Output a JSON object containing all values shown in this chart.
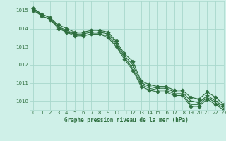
{
  "title": "Graphe pression niveau de la mer (hPa)",
  "background_color": "#cff0e8",
  "grid_color": "#a8d8cc",
  "line_color": "#2d6e3e",
  "marker_color": "#2d6e3e",
  "xlim": [
    -0.5,
    23
  ],
  "ylim": [
    1009.5,
    1015.5
  ],
  "yticks": [
    1010,
    1011,
    1012,
    1013,
    1014,
    1015
  ],
  "xticks": [
    0,
    1,
    2,
    3,
    4,
    5,
    6,
    7,
    8,
    9,
    10,
    11,
    12,
    13,
    14,
    15,
    16,
    17,
    18,
    19,
    20,
    21,
    22,
    23
  ],
  "series": [
    {
      "y": [
        1015.1,
        1014.8,
        1014.6,
        1014.1,
        1013.9,
        1013.7,
        1013.7,
        1013.8,
        1013.8,
        1013.7,
        1013.2,
        1012.5,
        1012.0,
        1011.0,
        1010.8,
        1010.7,
        1010.7,
        1010.5,
        1010.5,
        1010.0,
        1009.9,
        1010.3,
        1010.0,
        1009.7
      ],
      "marker": "+",
      "markersize": 4
    },
    {
      "y": [
        1015.1,
        1014.8,
        1014.6,
        1014.2,
        1014.0,
        1013.8,
        1013.8,
        1013.9,
        1013.9,
        1013.8,
        1013.3,
        1012.6,
        1012.2,
        1011.1,
        1010.9,
        1010.8,
        1010.8,
        1010.6,
        1010.6,
        1010.2,
        1010.1,
        1010.5,
        1010.2,
        1009.8
      ],
      "marker": "D",
      "markersize": 2.5
    },
    {
      "y": [
        1015.1,
        1014.7,
        1014.5,
        1014.1,
        1013.8,
        1013.7,
        1013.6,
        1013.7,
        1013.7,
        1013.6,
        1013.1,
        1012.4,
        1011.8,
        1010.9,
        1010.7,
        1010.6,
        1010.6,
        1010.4,
        1010.4,
        1009.8,
        1009.8,
        1010.2,
        1009.9,
        1009.6
      ],
      "marker": "none",
      "markersize": 0
    },
    {
      "y": [
        1015.0,
        1014.7,
        1014.5,
        1014.0,
        1013.8,
        1013.6,
        1013.6,
        1013.7,
        1013.7,
        1013.5,
        1013.0,
        1012.3,
        1011.7,
        1010.8,
        1010.6,
        1010.5,
        1010.5,
        1010.3,
        1010.3,
        1009.7,
        1009.7,
        1010.1,
        1009.8,
        1009.5
      ],
      "marker": "D",
      "markersize": 2.5
    }
  ]
}
